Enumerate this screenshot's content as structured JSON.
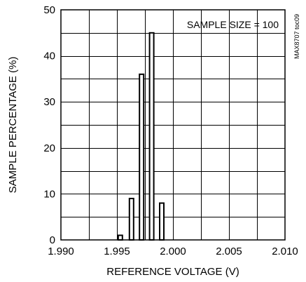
{
  "figure_id": "MAX8707 toc09",
  "chart_data": {
    "type": "bar",
    "title": "",
    "xlabel": "REFERENCE VOLTAGE (V)",
    "ylabel": "SAMPLE PERCENTAGE (%)",
    "annotation": "SAMPLE SIZE = 100",
    "xlim": [
      1.99,
      2.01
    ],
    "ylim": [
      0,
      50
    ],
    "x_ticks": [
      1.99,
      1.995,
      2.0,
      2.005,
      2.01
    ],
    "x_tick_labels": [
      "1.990",
      "1.995",
      "2.000",
      "2.005",
      "2.010"
    ],
    "y_ticks": [
      0,
      10,
      20,
      30,
      40,
      50
    ],
    "y_tick_labels": [
      "0",
      "10",
      "20",
      "30",
      "40",
      "50"
    ],
    "grid": true,
    "bar_fill": "#ffffff",
    "bar_stroke": "#000000",
    "x": [
      1.9953,
      1.9963,
      1.9972,
      1.9981,
      1.999
    ],
    "values": [
      1,
      9,
      36,
      45,
      8
    ]
  }
}
